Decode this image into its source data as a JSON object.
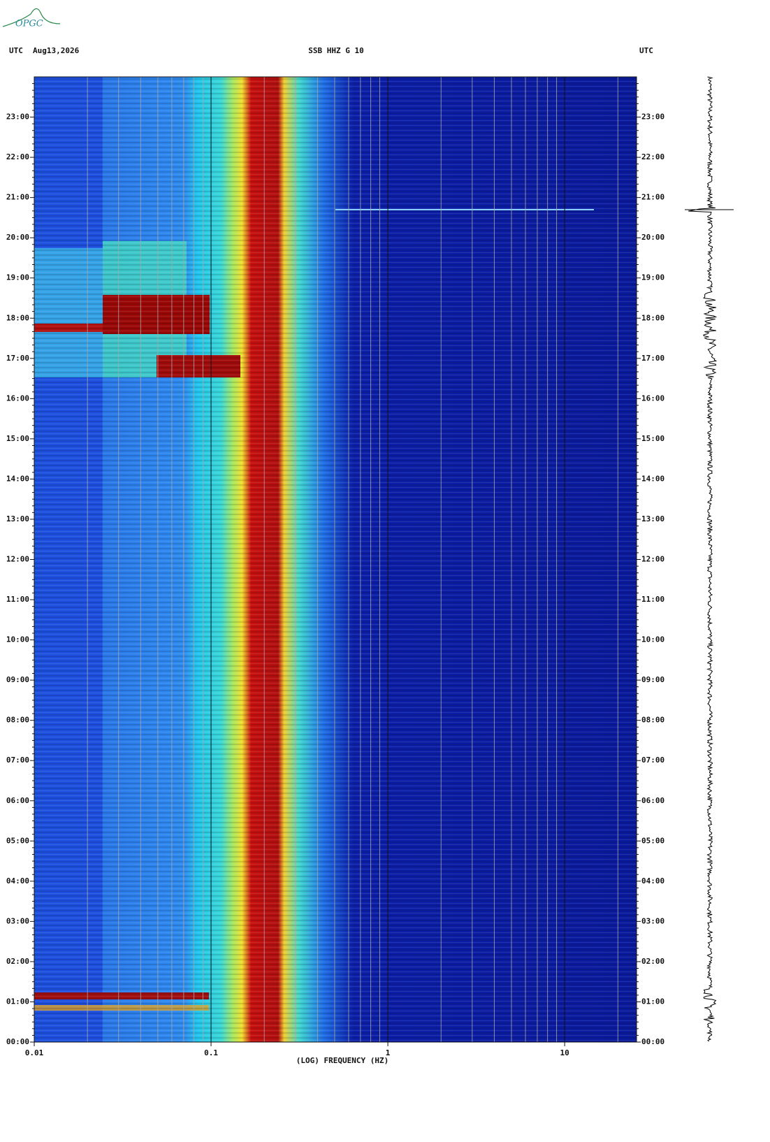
{
  "chart_data": {
    "type": "spectrogram",
    "logo": "OPGC",
    "left_header": "UTC",
    "date": "Aug13,2026",
    "title": "SSB HHZ G 10",
    "right_header": "UTC",
    "xlabel": "(LOG) FREQUENCY (HZ)",
    "xscale": "log",
    "xlim": [
      0.01,
      25.5
    ],
    "xticks": [
      0.01,
      0.1,
      1,
      10
    ],
    "ylim": [
      0,
      24
    ],
    "yticks": [
      {
        "value": 0,
        "label": "00:00"
      },
      {
        "value": 1,
        "label": "01:00"
      },
      {
        "value": 2,
        "label": "02:00"
      },
      {
        "value": 3,
        "label": "03:00"
      },
      {
        "value": 4,
        "label": "04:00"
      },
      {
        "value": 5,
        "label": "05:00"
      },
      {
        "value": 6,
        "label": "06:00"
      },
      {
        "value": 7,
        "label": "07:00"
      },
      {
        "value": 8,
        "label": "08:00"
      },
      {
        "value": 9,
        "label": "09:00"
      },
      {
        "value": 10,
        "label": "10:00"
      },
      {
        "value": 11,
        "label": "11:00"
      },
      {
        "value": 12,
        "label": "12:00"
      },
      {
        "value": 13,
        "label": "13:00"
      },
      {
        "value": 14,
        "label": "14:00"
      },
      {
        "value": 15,
        "label": "15:00"
      },
      {
        "value": 16,
        "label": "16:00"
      },
      {
        "value": 17,
        "label": "17:00"
      },
      {
        "value": 18,
        "label": "18:00"
      },
      {
        "value": 19,
        "label": "19:00"
      },
      {
        "value": 20,
        "label": "20:00"
      },
      {
        "value": 21,
        "label": "21:00"
      },
      {
        "value": 22,
        "label": "22:00"
      },
      {
        "value": 23,
        "label": "23:00"
      }
    ]
  }
}
